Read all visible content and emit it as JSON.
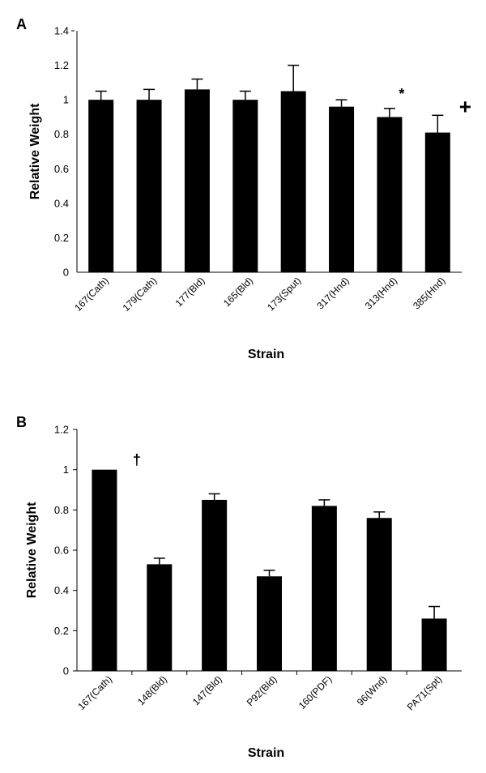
{
  "chart_data": [
    {
      "type": "bar",
      "panel_label": "A",
      "categories": [
        "167(Cath)",
        "179(Cath)",
        "177(Bld)",
        "165(Bld)",
        "173(Sput)",
        "317(Hnd)",
        "313(Hnd)",
        "385(Hnd)"
      ],
      "values": [
        1.0,
        1.0,
        1.06,
        1.0,
        1.05,
        0.96,
        0.9,
        0.81
      ],
      "errors": [
        0.05,
        0.06,
        0.06,
        0.05,
        0.15,
        0.04,
        0.05,
        0.1
      ],
      "annotations": [
        {
          "category": "313(Hnd)",
          "text": "*"
        },
        {
          "category": "385(Hnd)",
          "text": "+"
        }
      ],
      "xlabel": "Strain",
      "ylabel": "Relative Weight",
      "ylim": [
        0,
        1.4
      ],
      "yticks": [
        "0",
        "0.2",
        "0.4",
        "0.6",
        "0.8",
        "1",
        "1.2",
        "1.4"
      ],
      "grid": false,
      "bar_color": "#000000"
    },
    {
      "type": "bar",
      "panel_label": "B",
      "categories": [
        "167(Cath)",
        "148(Bld)",
        "147(Bld)",
        "P92(Bld)",
        "160(PDF)",
        "96(Wnd)",
        "PA71(Spt)"
      ],
      "values": [
        1.0,
        0.53,
        0.85,
        0.47,
        0.82,
        0.76,
        0.26
      ],
      "errors": [
        0,
        0.03,
        0.03,
        0.03,
        0.03,
        0.03,
        0.06
      ],
      "annotations": [
        {
          "category": "167(Cath)",
          "text": "†"
        }
      ],
      "xlabel": "Strain",
      "ylabel": "Relative Weight",
      "ylim": [
        0,
        1.2
      ],
      "yticks": [
        "0",
        "0.2",
        "0.4",
        "0.6",
        "0.8",
        "1",
        "1.2"
      ],
      "grid": false,
      "bar_color": "#000000"
    }
  ]
}
